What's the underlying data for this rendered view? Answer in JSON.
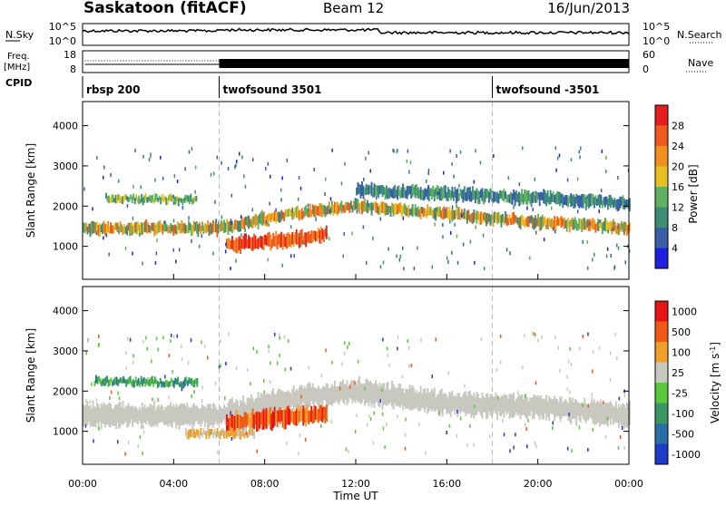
{
  "header": {
    "station": "Saskatoon (fitACF)",
    "beam": "Beam 12",
    "date": "16/Jun/2013"
  },
  "top_panels": {
    "noise": {
      "left_label": "N.Sky",
      "right_label": "N.Search",
      "tick_top": "10^5",
      "tick_bottom": "10^0"
    },
    "freq": {
      "left_label_1": "Freq.",
      "left_label_2": "[MHz]",
      "tick_top": "18",
      "tick_bottom": "8",
      "right_ticks": [
        "60",
        "0"
      ],
      "right_label": "Nave"
    },
    "cpid": {
      "label": "CPID",
      "segments": [
        {
          "name": "rbsp 200",
          "start_hour": 0
        },
        {
          "name": "twofsound 3501",
          "start_hour": 6
        },
        {
          "name": "twofsound -3501",
          "start_hour": 18
        }
      ]
    }
  },
  "chart_data": [
    {
      "type": "heatmap",
      "panel": "power",
      "ylabel": "Slant Range [km]",
      "ylim": [
        180,
        4600
      ],
      "yticks": [
        1000,
        2000,
        3000,
        4000
      ],
      "xlim": [
        0,
        24
      ],
      "colorbar": {
        "label": "Power [dB]",
        "min": 0,
        "max": 32,
        "ticks": [
          "4",
          "8",
          "12",
          "16",
          "20",
          "24",
          "28"
        ],
        "colors": [
          "#1f1fe0",
          "#3a5fa8",
          "#3c8c78",
          "#5fb05f",
          "#e6c020",
          "#f0901e",
          "#f05a1e",
          "#e81e1e"
        ]
      },
      "bands": [
        {
          "t": [
            0,
            6,
            9,
            12,
            16,
            20,
            24
          ],
          "r": [
            1450,
            1450,
            1800,
            2000,
            1800,
            1600,
            1450
          ],
          "width": 280,
          "level": "high"
        },
        {
          "t": [
            1,
            5
          ],
          "r": [
            2200,
            2150
          ],
          "width": 180,
          "level": "mid"
        },
        {
          "t": [
            6.3,
            9,
            10.7
          ],
          "r": [
            1050,
            1150,
            1300
          ],
          "width": 350,
          "level": "max"
        },
        {
          "t": [
            12,
            16,
            20,
            24
          ],
          "r": [
            2400,
            2300,
            2200,
            2050
          ],
          "width": 300,
          "level": "low"
        }
      ]
    },
    {
      "type": "heatmap",
      "panel": "velocity",
      "ylabel": "Slant Range [km]",
      "xlabel": "Time UT",
      "ylim": [
        180,
        4600
      ],
      "yticks": [
        1000,
        2000,
        3000,
        4000
      ],
      "xlim": [
        0,
        24
      ],
      "xticks": [
        "00:00",
        "04:00",
        "08:00",
        "12:00",
        "16:00",
        "20:00",
        "00:00"
      ],
      "colorbar": {
        "label": "Velocity [m s^-1]",
        "ticks": [
          "1000",
          "500",
          "100",
          "25",
          "-25",
          "-100",
          "-500",
          "-1000"
        ],
        "colors": [
          "#1e3cc8",
          "#2a6fa8",
          "#3c9664",
          "#5ac83c",
          "#c8c8c0",
          "#f0a028",
          "#f05a14",
          "#e61414"
        ]
      },
      "bands": [
        {
          "t": [
            0,
            6,
            9,
            12,
            16,
            20,
            24
          ],
          "r": [
            1400,
            1400,
            1800,
            2000,
            1700,
            1600,
            1400
          ],
          "width": 550,
          "level": "ground"
        },
        {
          "t": [
            6.3,
            8,
            10.7
          ],
          "r": [
            1200,
            1300,
            1450
          ],
          "width": 450,
          "level": "away"
        },
        {
          "t": [
            4.5,
            7.5
          ],
          "r": [
            950,
            950
          ],
          "width": 200,
          "level": "slow"
        },
        {
          "t": [
            0.5,
            5
          ],
          "r": [
            2250,
            2200
          ],
          "width": 180,
          "level": "toward"
        }
      ]
    }
  ]
}
